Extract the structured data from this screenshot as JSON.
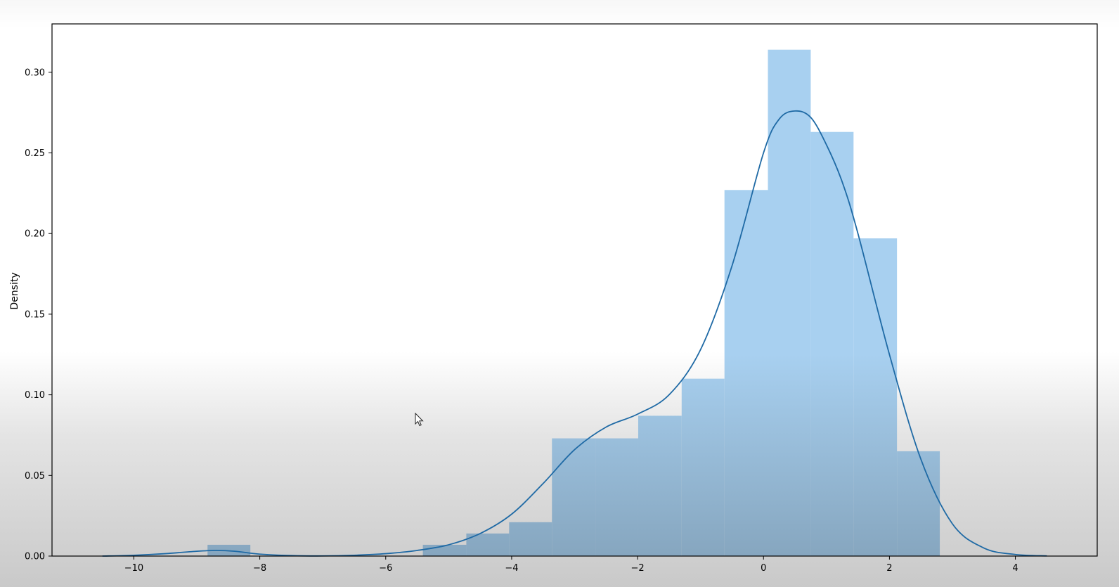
{
  "chart_data": {
    "type": "bar",
    "subtype": "histogram-with-kde",
    "title": "",
    "xlabel": "",
    "ylabel": "Density",
    "xlim": [
      -11.3,
      5.3
    ],
    "ylim": [
      0,
      0.33
    ],
    "xticks": [
      -10,
      -8,
      -6,
      -4,
      -2,
      0,
      2,
      4
    ],
    "xtick_labels": [
      "−10",
      "−8",
      "−6",
      "−4",
      "−2",
      "0",
      "2",
      "4"
    ],
    "yticks": [
      0.0,
      0.05,
      0.1,
      0.15,
      0.2,
      0.25,
      0.3
    ],
    "ytick_labels": [
      "0.00",
      "0.05",
      "0.10",
      "0.15",
      "0.20",
      "0.25",
      "0.30"
    ],
    "bins": [
      {
        "x0": -8.83,
        "x1": -8.15,
        "value": 0.007
      },
      {
        "x0": -5.41,
        "x1": -4.72,
        "value": 0.007
      },
      {
        "x0": -4.72,
        "x1": -4.04,
        "value": 0.014
      },
      {
        "x0": -4.04,
        "x1": -3.36,
        "value": 0.021
      },
      {
        "x0": -3.36,
        "x1": -2.67,
        "value": 0.073
      },
      {
        "x0": -2.67,
        "x1": -1.99,
        "value": 0.073
      },
      {
        "x0": -1.99,
        "x1": -1.3,
        "value": 0.087
      },
      {
        "x0": -1.3,
        "x1": -0.62,
        "value": 0.11
      },
      {
        "x0": -0.62,
        "x1": 0.07,
        "value": 0.227
      },
      {
        "x0": 0.07,
        "x1": 0.75,
        "value": 0.314
      },
      {
        "x0": 0.75,
        "x1": 1.43,
        "value": 0.263
      },
      {
        "x0": 1.43,
        "x1": 2.12,
        "value": 0.197
      },
      {
        "x0": 2.12,
        "x1": 2.8,
        "value": 0.065
      }
    ],
    "kde": {
      "x": [
        -10.5,
        -10.0,
        -9.5,
        -9.0,
        -8.7,
        -8.4,
        -8.0,
        -7.5,
        -7.0,
        -6.5,
        -6.0,
        -5.5,
        -5.0,
        -4.5,
        -4.0,
        -3.5,
        -3.0,
        -2.5,
        -2.0,
        -1.5,
        -1.0,
        -0.5,
        0.0,
        0.25,
        0.5,
        0.75,
        1.0,
        1.25,
        1.5,
        2.0,
        2.5,
        3.0,
        3.5,
        4.0,
        4.5
      ],
      "y": [
        0.0,
        0.0005,
        0.0015,
        0.003,
        0.0035,
        0.003,
        0.0012,
        0.0003,
        0.0001,
        0.0005,
        0.0015,
        0.0035,
        0.007,
        0.014,
        0.026,
        0.045,
        0.066,
        0.08,
        0.088,
        0.1,
        0.128,
        0.18,
        0.25,
        0.271,
        0.276,
        0.272,
        0.255,
        0.232,
        0.2,
        0.125,
        0.06,
        0.02,
        0.005,
        0.001,
        0.0001
      ]
    },
    "bar_color": "#a8d0f0",
    "line_color": "#1f6aa5"
  }
}
